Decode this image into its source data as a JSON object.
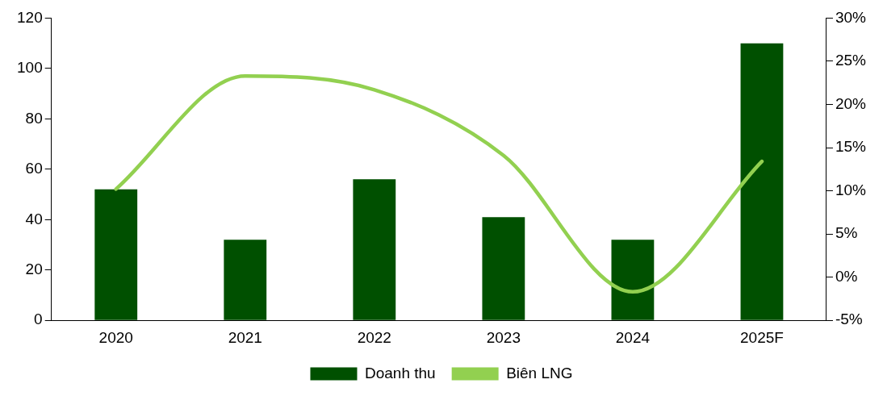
{
  "chart_data": {
    "type": "bar",
    "categories": [
      "2020",
      "2021",
      "2022",
      "2023",
      "2024",
      "2025F"
    ],
    "series": [
      {
        "name": "Doanh thu",
        "color": "#005000",
        "values": [
          52,
          32,
          56,
          41,
          32,
          110
        ]
      },
      {
        "name": "Biên LNG",
        "type": "line",
        "axis": "y2",
        "color": "#92d050",
        "values": [
          10.2,
          23.3,
          21.7,
          14.1,
          -1.7,
          13.4
        ]
      }
    ],
    "ylim": [
      0,
      120
    ],
    "yticks": [
      0,
      20,
      40,
      60,
      80,
      100,
      120
    ],
    "y2lim": [
      -5,
      30
    ],
    "y2ticks": [
      {
        "value": -5,
        "label": "-5%"
      },
      {
        "value": 0,
        "label": "0%"
      },
      {
        "value": 5,
        "label": "5%"
      },
      {
        "value": 10,
        "label": "10%"
      },
      {
        "value": 15,
        "label": "15%"
      },
      {
        "value": 20,
        "label": "20%"
      },
      {
        "value": 25,
        "label": "25%"
      },
      {
        "value": 30,
        "label": "30%"
      }
    ],
    "grid": false,
    "legend": "bottom",
    "marker": "none",
    "line_style": "solid"
  }
}
